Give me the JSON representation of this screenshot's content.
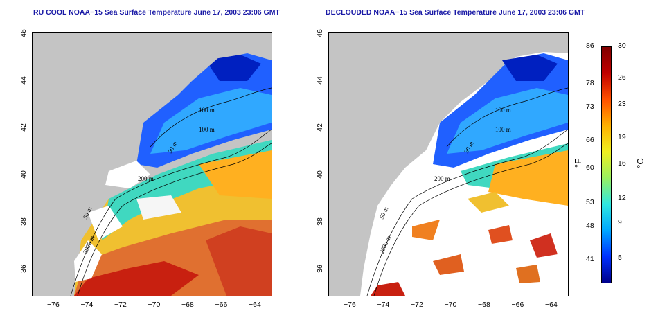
{
  "panels": [
    {
      "title": "RU COOL NOAA−15 Sea Surface Temperature June 17, 2003 23:06 GMT"
    },
    {
      "title": "DECLOUDED NOAA−15 Sea Surface Temperature June 17, 2003 23:06 GMT"
    }
  ],
  "xticks": [
    "−76",
    "−74",
    "−72",
    "−70",
    "−68",
    "−66",
    "−64"
  ],
  "yticks": [
    "46",
    "44",
    "42",
    "40",
    "38",
    "36"
  ],
  "contours": {
    "c1": "100 m",
    "c2": "100 m",
    "c3": "50 m",
    "c4": "200 m",
    "c5": "50 m",
    "c6": "2000 m"
  },
  "colorbar": {
    "f_ticks": [
      "86",
      "78",
      "73",
      "66",
      "60",
      "53",
      "48",
      "41"
    ],
    "c_ticks": [
      "30",
      "26",
      "23",
      "19",
      "16",
      "12",
      "9",
      "5"
    ],
    "f_unit": "°F",
    "c_unit": "°C",
    "colors": [
      "#00008b",
      "#0030ff",
      "#00a8ff",
      "#30e8e0",
      "#9af060",
      "#f0f020",
      "#ffb000",
      "#ff5000",
      "#c00000",
      "#800000"
    ]
  }
}
